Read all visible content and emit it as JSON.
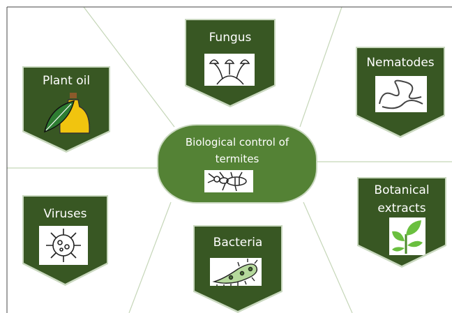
{
  "center": {
    "label": "Biological control of termites"
  },
  "nodes": [
    {
      "label": "Fungus"
    },
    {
      "label": "Nematodes"
    },
    {
      "label": "Plant oil"
    },
    {
      "label": "Viruses"
    },
    {
      "label": "Bacteria"
    },
    {
      "label": "Botanical extracts"
    }
  ]
}
